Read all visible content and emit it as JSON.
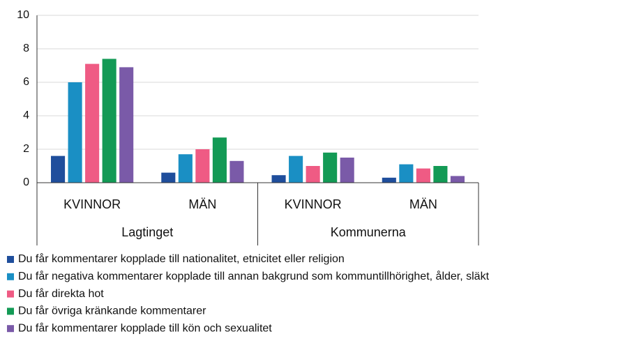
{
  "chart_data": {
    "type": "bar",
    "groups": [
      {
        "label": "Lagtinget",
        "categories": [
          "KVINNOR",
          "MÄN"
        ]
      },
      {
        "label": "Kommunerna",
        "categories": [
          "KVINNOR",
          "MÄN"
        ]
      }
    ],
    "series": [
      {
        "name": "Du får kommentarer kopplade till nationalitet, etnicitet eller religion",
        "color": "#1f4e9c",
        "values": [
          1.6,
          0.6,
          0.45,
          0.3
        ]
      },
      {
        "name": "Du får negativa kommentarer kopplade till annan bakgrund som kommuntillhörighet, ålder, släkt",
        "color": "#1a8fc4",
        "values": [
          6.0,
          1.7,
          1.6,
          1.1
        ]
      },
      {
        "name": "Du får direkta hot",
        "color": "#ef5b84",
        "values": [
          7.1,
          2.0,
          1.0,
          0.85
        ]
      },
      {
        "name": "Du får övriga kränkande kommentarer",
        "color": "#139a55",
        "values": [
          7.4,
          2.7,
          1.8,
          1.0
        ]
      },
      {
        "name": "Du får kommentarer kopplade till kön och sexualitet",
        "color": "#7a5aa8",
        "values": [
          6.9,
          1.3,
          1.5,
          0.4
        ]
      }
    ],
    "ylim": [
      0,
      10
    ],
    "yticks": [
      0,
      2,
      4,
      6,
      8,
      10
    ],
    "grid": true,
    "legend": "bottom"
  }
}
